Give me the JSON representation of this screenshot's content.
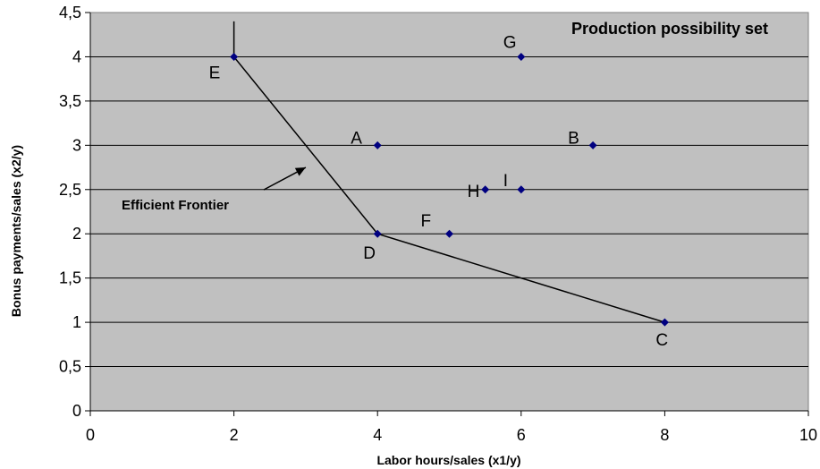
{
  "chart_data": {
    "type": "scatter",
    "title": "Production possibility set",
    "xlabel": "Labor hours/sales (x1/y)",
    "ylabel": "Bonus payments/sales (x2/y)",
    "xlim": [
      0,
      10
    ],
    "ylim": [
      0,
      4.5
    ],
    "x_ticks": [
      "0",
      "2",
      "4",
      "6",
      "8",
      "10"
    ],
    "y_ticks": [
      "0",
      "0,5",
      "1",
      "1,5",
      "2",
      "2,5",
      "3",
      "3,5",
      "4",
      "4,5"
    ],
    "grid": "horizontal",
    "points": [
      {
        "label": "A",
        "x": 4,
        "y": 3
      },
      {
        "label": "B",
        "x": 7,
        "y": 3
      },
      {
        "label": "C",
        "x": 8,
        "y": 1
      },
      {
        "label": "D",
        "x": 4,
        "y": 2
      },
      {
        "label": "E",
        "x": 2,
        "y": 4
      },
      {
        "label": "F",
        "x": 5,
        "y": 2
      },
      {
        "label": "G",
        "x": 6,
        "y": 4
      },
      {
        "label": "H",
        "x": 5.5,
        "y": 2.5
      },
      {
        "label": "I",
        "x": 6,
        "y": 2.5
      }
    ],
    "frontier": [
      {
        "x": 2,
        "y": 4.4
      },
      {
        "x": 2,
        "y": 4
      },
      {
        "x": 4,
        "y": 2
      },
      {
        "x": 8,
        "y": 1
      }
    ],
    "annotation": {
      "text": "Efficient Frontier",
      "arrow_to": {
        "x": 3,
        "y": 2.75
      }
    },
    "colors": {
      "plot_bg": "#c0c0c0",
      "marker": "#000080",
      "line": "#000000"
    }
  }
}
